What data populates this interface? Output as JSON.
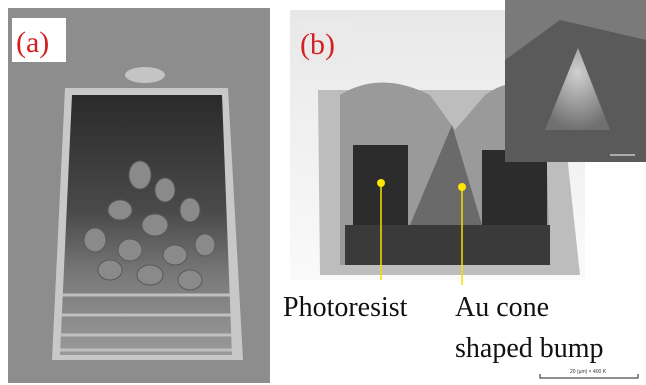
{
  "panels": [
    {
      "label": "(a)"
    },
    {
      "label": "(b)"
    }
  ],
  "annotations": [
    "Photoresist",
    "Au cone",
    "shaped bump"
  ],
  "scale_bar": "20 (μm) × 400 K"
}
